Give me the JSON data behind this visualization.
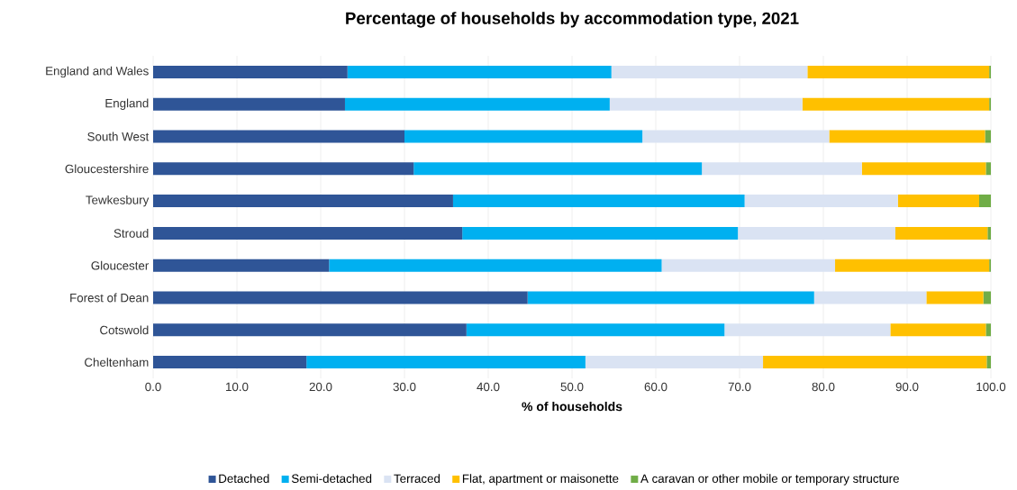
{
  "chart_data": {
    "type": "bar",
    "orientation": "horizontal",
    "stacked": true,
    "title": "Percentage of households by accommodation type, 2021",
    "xlabel": "% of households",
    "categories": [
      "England and Wales",
      "England",
      "South West",
      "Gloucestershire",
      "Tewkesbury",
      "Stroud",
      "Gloucester",
      "Forest of Dean",
      "Cotswold",
      "Cheltenham"
    ],
    "series": [
      {
        "name": "Detached",
        "color": "#2f5597",
        "values": [
          23.2,
          22.9,
          30.0,
          31.1,
          35.8,
          36.9,
          21.0,
          44.7,
          37.4,
          18.3
        ]
      },
      {
        "name": "Semi-detached",
        "color": "#00b0f0",
        "values": [
          31.5,
          31.6,
          28.4,
          34.4,
          34.8,
          32.9,
          39.7,
          34.2,
          30.8,
          33.3
        ]
      },
      {
        "name": "Terraced",
        "color": "#dae3f3",
        "values": [
          23.4,
          23.0,
          22.3,
          19.1,
          18.3,
          18.8,
          20.7,
          13.4,
          19.8,
          21.2
        ]
      },
      {
        "name": "Flat, apartment or maisonette",
        "color": "#ffc000",
        "values": [
          21.7,
          22.3,
          18.6,
          14.8,
          9.7,
          11.0,
          18.4,
          6.8,
          11.4,
          26.7
        ]
      },
      {
        "name": "A caravan or other mobile or temporary structure",
        "color": "#70ad47",
        "values": [
          0.2,
          0.2,
          0.7,
          0.6,
          1.4,
          0.4,
          0.2,
          0.9,
          0.6,
          0.5
        ]
      }
    ],
    "xlim": [
      0,
      100
    ],
    "xticks": [
      {
        "value": 0,
        "label": "0.0"
      },
      {
        "value": 10,
        "label": "10.0"
      },
      {
        "value": 20,
        "label": "20.0"
      },
      {
        "value": 30,
        "label": "30.0"
      },
      {
        "value": 40,
        "label": "40.0"
      },
      {
        "value": 50,
        "label": "50.0"
      },
      {
        "value": 60,
        "label": "60.0"
      },
      {
        "value": 70,
        "label": "70.0"
      },
      {
        "value": 80,
        "label": "80.0"
      },
      {
        "value": 90,
        "label": "90.0"
      },
      {
        "value": 100,
        "label": "100.0"
      }
    ],
    "grid": "x",
    "legend": "bottom"
  }
}
